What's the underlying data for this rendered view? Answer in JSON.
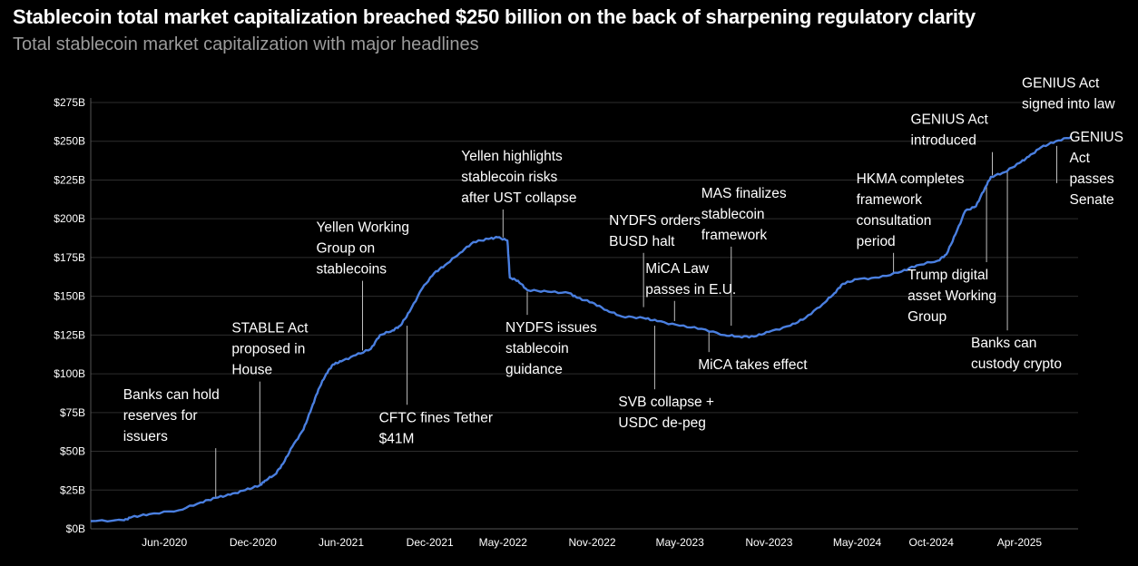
{
  "chart_data": {
    "type": "line",
    "title": "Stablecoin total market capitalization breached $250 billion on the back of sharpening regulatory clarity",
    "subtitle": "Total stablecoin market capitalization with major headlines",
    "xlabel": "",
    "ylabel": "",
    "ylim": [
      0,
      275
    ],
    "grid": true,
    "x_range": [
      "2020-01-01",
      "2025-07-31"
    ],
    "x_ticks": [
      {
        "date": "2020-06-01",
        "label": "Jun-2020"
      },
      {
        "date": "2020-12-01",
        "label": "Dec-2020"
      },
      {
        "date": "2021-06-01",
        "label": "Jun-2021"
      },
      {
        "date": "2021-12-01",
        "label": "Dec-2021"
      },
      {
        "date": "2022-05-01",
        "label": "May-2022"
      },
      {
        "date": "2022-11-01",
        "label": "Nov-2022"
      },
      {
        "date": "2023-05-01",
        "label": "May-2023"
      },
      {
        "date": "2023-11-01",
        "label": "Nov-2023"
      },
      {
        "date": "2024-05-01",
        "label": "May-2024"
      },
      {
        "date": "2024-10-01",
        "label": "Oct-2024"
      },
      {
        "date": "2025-04-01",
        "label": "Apr-2025"
      }
    ],
    "y_ticks": [
      {
        "value": 0,
        "label": "$0B"
      },
      {
        "value": 25,
        "label": "$25B"
      },
      {
        "value": 50,
        "label": "$50B"
      },
      {
        "value": 75,
        "label": "$75B"
      },
      {
        "value": 100,
        "label": "$100B"
      },
      {
        "value": 125,
        "label": "$125B"
      },
      {
        "value": 150,
        "label": "$150B"
      },
      {
        "value": 175,
        "label": "$175B"
      },
      {
        "value": 200,
        "label": "$200B"
      },
      {
        "value": 225,
        "label": "$225B"
      },
      {
        "value": 250,
        "label": "$250B"
      },
      {
        "value": 275,
        "label": "$275B"
      }
    ],
    "series": [
      {
        "name": "Total stablecoin market capitalization ($B)",
        "color": "#4a7fe0",
        "points": [
          [
            "2020-01-01",
            5
          ],
          [
            "2020-03-10",
            5.5
          ],
          [
            "2020-03-25",
            7.5
          ],
          [
            "2020-05-01",
            9.5
          ],
          [
            "2020-07-01",
            12
          ],
          [
            "2020-08-15",
            17
          ],
          [
            "2020-09-15",
            20
          ],
          [
            "2020-10-15",
            22
          ],
          [
            "2020-11-15",
            25
          ],
          [
            "2020-12-15",
            28
          ],
          [
            "2020-12-25",
            31
          ],
          [
            "2021-01-15",
            35
          ],
          [
            "2021-02-01",
            42
          ],
          [
            "2021-02-20",
            53
          ],
          [
            "2021-03-15",
            64
          ],
          [
            "2021-04-01",
            78
          ],
          [
            "2021-04-15",
            90
          ],
          [
            "2021-05-01",
            100
          ],
          [
            "2021-05-15",
            106
          ],
          [
            "2021-06-01",
            108
          ],
          [
            "2021-07-01",
            112
          ],
          [
            "2021-08-01",
            116
          ],
          [
            "2021-08-20",
            125
          ],
          [
            "2021-09-15",
            128
          ],
          [
            "2021-10-01",
            131
          ],
          [
            "2021-10-20",
            140
          ],
          [
            "2021-11-15",
            155
          ],
          [
            "2021-12-10",
            165
          ],
          [
            "2022-01-01",
            170
          ],
          [
            "2022-02-01",
            178
          ],
          [
            "2022-03-01",
            185
          ],
          [
            "2022-04-01",
            187
          ],
          [
            "2022-04-20",
            188
          ],
          [
            "2022-05-10",
            186
          ],
          [
            "2022-05-15",
            162
          ],
          [
            "2022-06-01",
            160
          ],
          [
            "2022-06-20",
            154
          ],
          [
            "2022-08-01",
            153
          ],
          [
            "2022-09-15",
            152
          ],
          [
            "2022-10-01",
            149
          ],
          [
            "2022-11-01",
            146
          ],
          [
            "2022-12-01",
            141
          ],
          [
            "2023-01-01",
            137
          ],
          [
            "2023-02-15",
            136
          ],
          [
            "2023-03-15",
            134
          ],
          [
            "2023-05-01",
            131
          ],
          [
            "2023-06-15",
            129
          ],
          [
            "2023-08-01",
            125
          ],
          [
            "2023-09-01",
            124
          ],
          [
            "2023-10-01",
            124
          ],
          [
            "2023-11-01",
            127
          ],
          [
            "2023-12-15",
            131
          ],
          [
            "2024-01-15",
            136
          ],
          [
            "2024-02-20",
            145
          ],
          [
            "2024-03-15",
            152
          ],
          [
            "2024-04-01",
            158
          ],
          [
            "2024-05-01",
            161
          ],
          [
            "2024-06-15",
            162
          ],
          [
            "2024-08-01",
            166
          ],
          [
            "2024-09-01",
            170
          ],
          [
            "2024-10-15",
            173
          ],
          [
            "2024-11-01",
            177
          ],
          [
            "2024-11-20",
            190
          ],
          [
            "2024-12-10",
            205
          ],
          [
            "2025-01-01",
            208
          ],
          [
            "2025-01-20",
            220
          ],
          [
            "2025-02-01",
            227
          ],
          [
            "2025-03-01",
            230
          ],
          [
            "2025-04-01",
            236
          ],
          [
            "2025-04-20",
            240
          ],
          [
            "2025-05-15",
            246
          ],
          [
            "2025-06-15",
            250
          ],
          [
            "2025-07-18",
            253
          ]
        ]
      }
    ],
    "annotations": [
      {
        "lines": [
          "Banks can hold",
          "reserves for",
          "issuers"
        ],
        "date": "2020-09-15",
        "value": 20,
        "line_end_value": 52,
        "label_side": "above"
      },
      {
        "lines": [
          "STABLE Act",
          "proposed in",
          "House"
        ],
        "date": "2020-12-15",
        "value": 28,
        "line_end_value": 95,
        "label_side": "above"
      },
      {
        "lines": [
          "Yellen Working",
          "Group on",
          "stablecoins"
        ],
        "date": "2021-07-15",
        "value": 115,
        "line_end_value": 160,
        "label_side": "above"
      },
      {
        "lines": [
          "CFTC fines Tether",
          "$41M"
        ],
        "date": "2021-10-15",
        "value": 131,
        "line_end_value": 80,
        "label_side": "below"
      },
      {
        "lines": [
          "Yellen highlights",
          "stablecoin risks",
          "after UST collapse"
        ],
        "date": "2022-05-01",
        "value": 188,
        "line_end_value": 206,
        "label_side": "above"
      },
      {
        "lines": [
          "NYDFS issues",
          "stablecoin",
          "guidance"
        ],
        "date": "2022-06-20",
        "value": 153,
        "line_end_value": 138,
        "label_side": "below"
      },
      {
        "lines": [
          "NYDFS orders",
          "BUSD halt"
        ],
        "date": "2023-02-15",
        "value": 143,
        "line_end_value": 178,
        "label_side": "above"
      },
      {
        "lines": [
          "MiCA Law",
          "passes in E.U."
        ],
        "date": "2023-04-20",
        "value": 134,
        "line_end_value": 147,
        "label_side": "above"
      },
      {
        "lines": [
          "SVB collapse +",
          "USDC de-peg"
        ],
        "date": "2023-03-10",
        "value": 131,
        "line_end_value": 90,
        "label_side": "below"
      },
      {
        "lines": [
          "MiCA takes effect"
        ],
        "date": "2023-06-30",
        "value": 127,
        "line_end_value": 114,
        "label_side": "below"
      },
      {
        "lines": [
          "MAS finalizes",
          "stablecoin",
          "framework"
        ],
        "date": "2023-08-15",
        "value": 131,
        "line_end_value": 182,
        "label_side": "above"
      },
      {
        "lines": [
          "HKMA completes",
          "framework",
          "consultation",
          "period"
        ],
        "date": "2024-07-15",
        "value": 165,
        "line_end_value": 178,
        "label_side": "above"
      },
      {
        "lines": [
          "Trump digital",
          "asset Working",
          "Group"
        ],
        "date": "2025-01-23",
        "value": 222,
        "line_end_value": 172,
        "label_side": "below"
      },
      {
        "lines": [
          "GENIUS Act",
          "introduced"
        ],
        "date": "2025-02-04",
        "value": 228,
        "line_end_value": 243,
        "label_side": "above"
      },
      {
        "lines": [
          "Banks can",
          "custody crypto"
        ],
        "date": "2025-03-07",
        "value": 231,
        "line_end_value": 128,
        "label_side": "below"
      },
      {
        "lines": [
          "GENIUS",
          "Act",
          "passes",
          "Senate"
        ],
        "date": "2025-06-17",
        "value": 247,
        "line_end_value": 223,
        "label_side": "below"
      },
      {
        "lines": [
          "GENIUS Act",
          "signed into law"
        ],
        "date": "2025-07-18",
        "value": 253,
        "line_end_value": 253,
        "label_side": "above"
      }
    ]
  },
  "colors": {
    "background": "#000000",
    "line": "#4a7fe0",
    "grid": "#2e2e2e",
    "text": "#ffffff",
    "subtitle": "#9b9b9b",
    "leader": "#bfbfbf"
  }
}
